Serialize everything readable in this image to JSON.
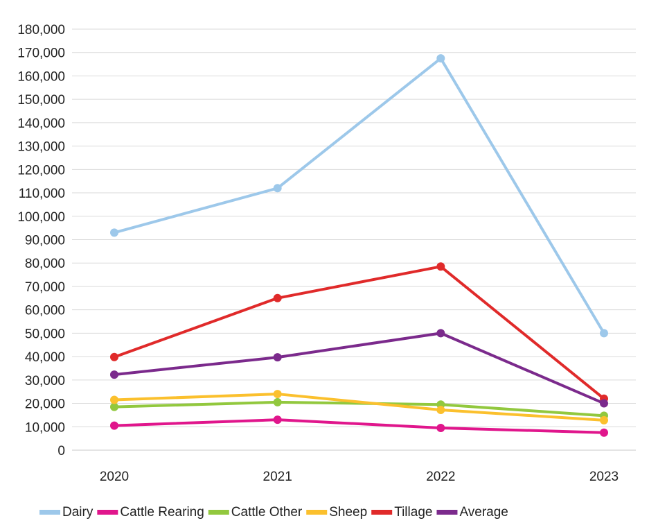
{
  "chart_data": {
    "type": "line",
    "title": "",
    "xlabel": "",
    "ylabel": "",
    "x": [
      "2020",
      "2021",
      "2022",
      "2023"
    ],
    "ylim": [
      0,
      180000
    ],
    "ytick_step": 10000,
    "y_tick_labels": [
      "0",
      "10,000",
      "20,000",
      "30,000",
      "40,000",
      "50,000",
      "60,000",
      "70,000",
      "80,000",
      "90,000",
      "100,000",
      "110,000",
      "120,000",
      "130,000",
      "140,000",
      "150,000",
      "160,000",
      "170,000",
      "180,000"
    ],
    "grid": "horizontal",
    "legend_position": "bottom",
    "series": [
      {
        "name": "Dairy",
        "color": "#9DC8EA",
        "values": [
          93000,
          112000,
          167500,
          50000
        ]
      },
      {
        "name": "Cattle Rearing",
        "color": "#E0168C",
        "values": [
          10500,
          13000,
          9500,
          7500
        ]
      },
      {
        "name": "Cattle Other",
        "color": "#92C83E",
        "values": [
          18500,
          20500,
          19500,
          14700
        ]
      },
      {
        "name": "Sheep",
        "color": "#FBC02D",
        "values": [
          21500,
          24000,
          17200,
          12800
        ]
      },
      {
        "name": "Tillage",
        "color": "#E02A2A",
        "values": [
          39800,
          65000,
          78500,
          22000
        ]
      },
      {
        "name": "Average",
        "color": "#7B2A8C",
        "values": [
          32300,
          39700,
          50000,
          20000
        ]
      }
    ]
  }
}
